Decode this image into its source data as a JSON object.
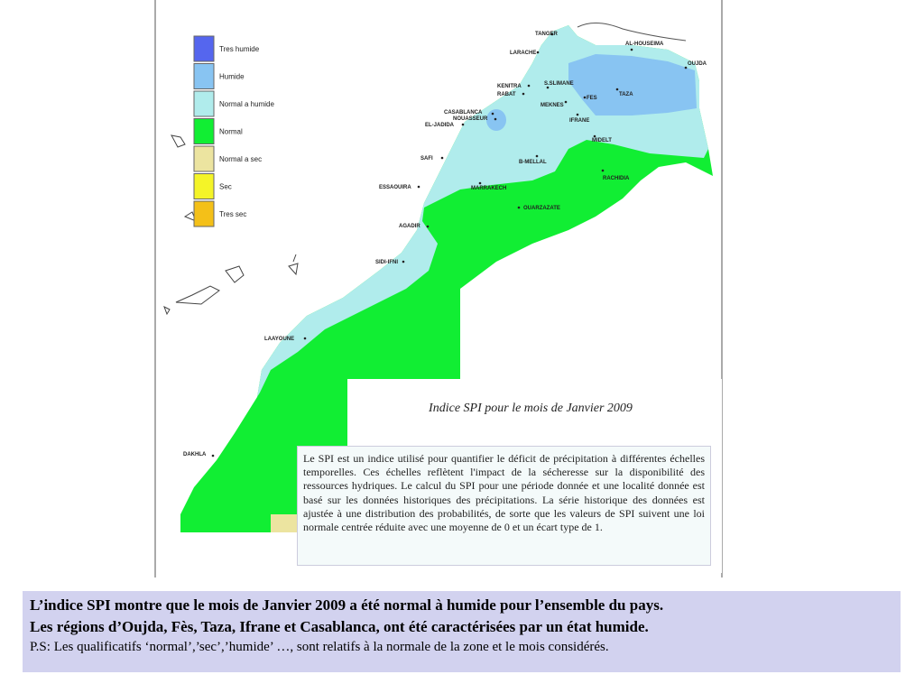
{
  "legend": [
    {
      "label": "Tres humide",
      "color": "#5566ee"
    },
    {
      "label": "Humide",
      "color": "#88c4f2"
    },
    {
      "label": "Normal a humide",
      "color": "#b0ecec"
    },
    {
      "label": "Normal",
      "color": "#11ee33"
    },
    {
      "label": "Normal a sec",
      "color": "#ece4a0"
    },
    {
      "label": "Sec",
      "color": "#f4f428"
    },
    {
      "label": "Tres sec",
      "color": "#f4c018"
    }
  ],
  "cities": [
    "TANGER",
    "AL-HOUSEIMA",
    "OUJDA",
    "LARACHE",
    "KENITRA",
    "S.SLIMANE",
    "RABAT",
    "TAZA",
    "FES",
    "MEKNES",
    "CASABLANCA",
    "NOUASSEUR",
    "IFRANE",
    "EL-JADIDA",
    "MIDELT",
    "SAFI",
    "B-MELLAL",
    "RACHIDIA",
    "ESSAOUIRA",
    "MARRAKECH",
    "OUARZAZATE",
    "AGADIR",
    "SIDI-IFNI",
    "LAAYOUNE",
    "DAKHLA"
  ],
  "map_title": "Indice SPI pour le mois de Janvier 2009",
  "description": "Le SPI est un indice utilisé pour quantifier le déficit de précipitation à différentes échelles temporelles. Ces échelles reflètent l'impact de la sécheresse sur la disponibilité des ressources hydriques. Le calcul du SPI pour une période donnée et une localité donnée est basé sur les données historiques des précipitations. La série historique des données est ajustée à une distribution des probabilités, de sorte que les valeurs de SPI suivent une loi normale centrée réduite avec une moyenne de 0 et un écart type de 1.",
  "caption": {
    "line1": "L’indice SPI montre que le mois de Janvier 2009 a été normal à humide pour l’ensemble du pays.",
    "line2": "Les régions d’Oujda, Fès, Taza, Ifrane et Casablanca, ont été caractérisées par un état humide.",
    "note": "P.S: Les qualificatifs ‘normal’,’sec’,’humide’ …, sont relatifs à la normale de la zone et le mois considérés."
  }
}
